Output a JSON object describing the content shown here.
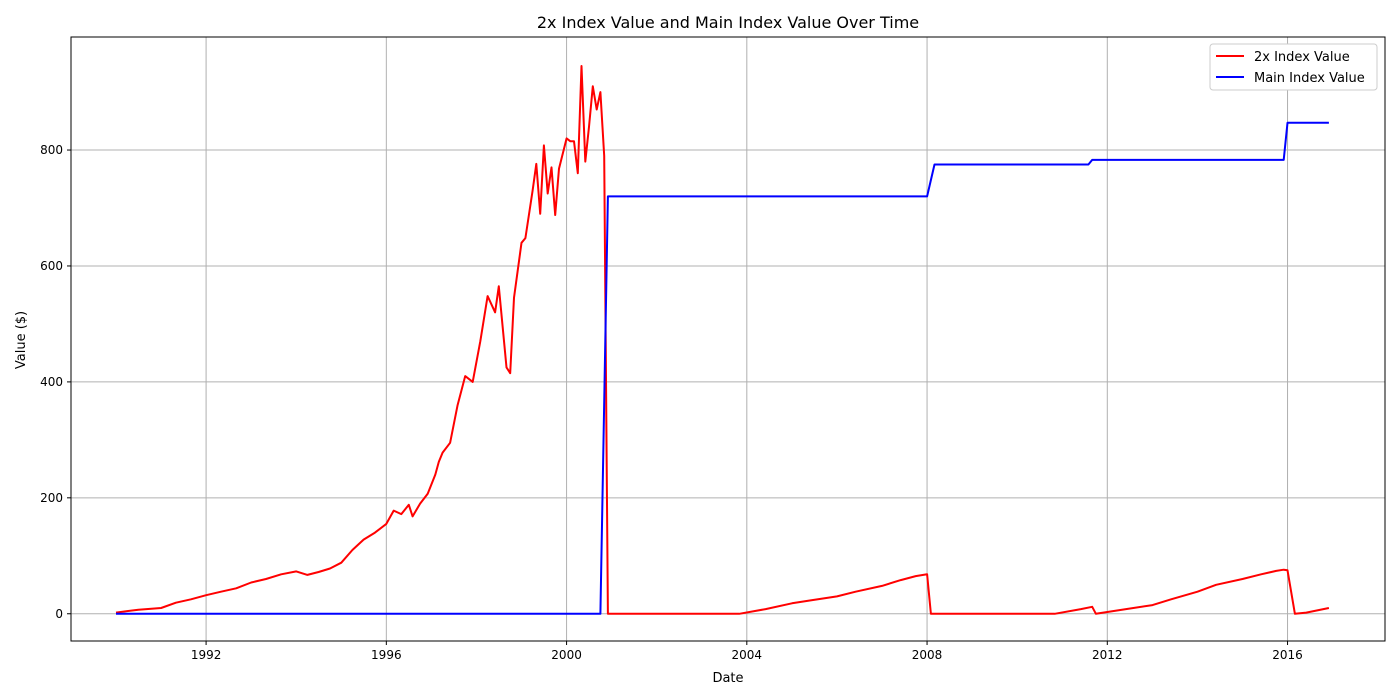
{
  "chart_data": {
    "type": "line",
    "title": "2x Index Value and Main Index Value Over Time",
    "xlabel": "Date",
    "ylabel": "Value ($)",
    "xlim": [
      "1989-01-01",
      "2018-03-01"
    ],
    "ylim": [
      -47,
      995
    ],
    "x_ticks": [
      "1992",
      "1996",
      "2000",
      "2004",
      "2008",
      "2012",
      "2016"
    ],
    "y_ticks": [
      0,
      200,
      400,
      600,
      800
    ],
    "grid": true,
    "legend_position": "top-right",
    "series": [
      {
        "name": "2x Index Value",
        "color": "#ff0000",
        "x": [
          "1990-01-01",
          "1990-07-01",
          "1991-01-01",
          "1991-05-01",
          "1991-09-01",
          "1992-01-01",
          "1992-05-01",
          "1992-09-01",
          "1993-01-01",
          "1993-05-01",
          "1993-09-01",
          "1994-01-01",
          "1994-04-01",
          "1994-07-01",
          "1994-10-01",
          "1995-01-01",
          "1995-04-01",
          "1995-07-01",
          "1995-10-01",
          "1996-01-01",
          "1996-03-01",
          "1996-05-01",
          "1996-07-01",
          "1996-08-01",
          "1996-10-01",
          "1996-12-01",
          "1997-02-01",
          "1997-03-01",
          "1997-04-01",
          "1997-06-01",
          "1997-08-01",
          "1997-10-01",
          "1997-12-01",
          "1998-02-01",
          "1998-04-01",
          "1998-06-01",
          "1998-07-01",
          "1998-09-01",
          "1998-10-01",
          "1998-11-01",
          "1999-01-01",
          "1999-02-01",
          "1999-04-01",
          "1999-05-01",
          "1999-06-01",
          "1999-07-01",
          "1999-08-01",
          "1999-09-01",
          "1999-10-01",
          "1999-11-01",
          "2000-01-01",
          "2000-02-01",
          "2000-03-01",
          "2000-04-01",
          "2000-05-01",
          "2000-06-01",
          "2000-07-01",
          "2000-08-01",
          "2000-09-01",
          "2000-10-01",
          "2000-11-01",
          "2000-12-01",
          "2001-06-01",
          "2002-06-01",
          "2003-06-01",
          "2003-11-01",
          "2004-06-01",
          "2005-01-01",
          "2005-06-01",
          "2006-01-01",
          "2006-06-01",
          "2007-01-01",
          "2007-06-01",
          "2007-10-01",
          "2008-01-01",
          "2008-02-01",
          "2009-01-01",
          "2010-01-01",
          "2010-11-01",
          "2011-06-01",
          "2011-09-01",
          "2011-10-01",
          "2012-01-01",
          "2012-06-01",
          "2013-01-01",
          "2013-06-01",
          "2014-01-01",
          "2014-06-01",
          "2015-01-01",
          "2015-06-01",
          "2015-10-01",
          "2015-12-01",
          "2016-01-01",
          "2016-03-01",
          "2016-06-01",
          "2016-12-01"
        ],
        "values": [
          2,
          7,
          10,
          19,
          25,
          32,
          38,
          44,
          54,
          60,
          68,
          73,
          67,
          72,
          78,
          88,
          110,
          128,
          140,
          155,
          178,
          172,
          188,
          168,
          190,
          207,
          240,
          262,
          278,
          295,
          360,
          410,
          400,
          470,
          548,
          520,
          565,
          425,
          415,
          545,
          640,
          648,
          730,
          776,
          690,
          808,
          725,
          770,
          688,
          768,
          820,
          815,
          815,
          760,
          945,
          780,
          840,
          910,
          870,
          900,
          790,
          0,
          0,
          0,
          0,
          0,
          8,
          18,
          23,
          30,
          38,
          48,
          58,
          65,
          68,
          0,
          0,
          0,
          0,
          8,
          12,
          0,
          3,
          8,
          15,
          25,
          38,
          50,
          60,
          68,
          74,
          76,
          75,
          0,
          2,
          10
        ],
        "values_note": ""
      },
      {
        "name": "Main Index Value",
        "color": "#0000ff",
        "x": [
          "1990-01-01",
          "2000-10-01",
          "2000-12-01",
          "2008-01-01",
          "2008-03-01",
          "2011-08-01",
          "2011-09-01",
          "2015-12-01",
          "2016-01-01",
          "2016-12-01"
        ],
        "values": [
          0,
          0,
          720,
          720,
          775,
          775,
          783,
          783,
          847,
          847
        ]
      }
    ]
  }
}
